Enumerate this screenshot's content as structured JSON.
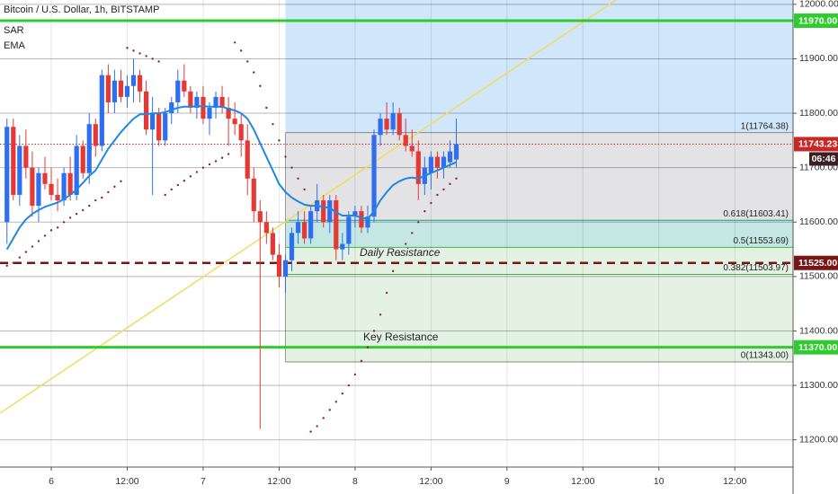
{
  "chart_data": {
    "type": "candlestick",
    "title": "Bitcoin / U.S. Dollar, 1h, BITSTAMP",
    "indicators": [
      "SAR",
      "EMA"
    ],
    "up_color": "#2e6ff2",
    "down_color": "#e53935",
    "ema_color": "#1e88e5",
    "sar_color": "#8e2430",
    "x": [
      -7,
      -6,
      -5,
      -4,
      -3,
      -2,
      -1,
      0,
      1,
      2,
      3,
      4,
      5,
      6,
      7,
      8,
      9,
      10,
      11,
      12,
      13,
      14,
      15,
      16,
      17,
      18,
      19,
      20,
      21,
      22,
      23,
      24,
      25,
      26,
      27,
      28,
      29,
      30,
      31,
      32,
      33,
      34,
      35,
      36,
      37,
      38,
      39,
      40,
      41,
      42,
      43,
      44,
      45,
      46,
      47,
      48,
      49,
      50,
      51,
      52,
      53,
      54,
      55,
      56,
      57,
      58,
      59,
      60,
      61,
      62,
      63,
      64
    ],
    "open": [
      11600,
      11775,
      11650,
      11740,
      11700,
      11630,
      11690,
      11670,
      11650,
      11640,
      11690,
      11650,
      11740,
      11690,
      11780,
      11740,
      11870,
      11820,
      11860,
      11830,
      11850,
      11870,
      11840,
      11770,
      11800,
      11750,
      11800,
      11820,
      11860,
      11840,
      11810,
      11830,
      11790,
      11810,
      11830,
      11810,
      11790,
      11780,
      11750,
      11680,
      11620,
      11600,
      11580,
      11540,
      11500,
      11530,
      11580,
      11600,
      11570,
      11620,
      11640,
      11600,
      11640,
      11550,
      11560,
      11610,
      11620,
      11590,
      11610,
      11760,
      11790,
      11770,
      11800,
      11760,
      11740,
      11730,
      11670,
      11690,
      11720,
      11700,
      11710,
      11715
    ],
    "high": [
      11790,
      11790,
      11760,
      11770,
      11730,
      11700,
      11720,
      11700,
      11680,
      11700,
      11720,
      11760,
      11750,
      11800,
      11790,
      11880,
      11890,
      11880,
      11880,
      11870,
      11900,
      11880,
      11860,
      11830,
      11810,
      11810,
      11830,
      11880,
      11890,
      11850,
      11840,
      11850,
      11820,
      11840,
      11850,
      11830,
      11820,
      11800,
      11780,
      11700,
      11640,
      11620,
      11590,
      11560,
      11540,
      11590,
      11620,
      11620,
      11630,
      11670,
      11650,
      11650,
      11650,
      11580,
      11620,
      11630,
      11630,
      11630,
      11770,
      11800,
      11820,
      11820,
      11810,
      11790,
      11770,
      11750,
      11720,
      11730,
      11730,
      11730,
      11750,
      11790
    ],
    "low": [
      11560,
      11640,
      11630,
      11680,
      11610,
      11600,
      11660,
      11640,
      11620,
      11630,
      11640,
      11640,
      11680,
      11670,
      11720,
      11730,
      11800,
      11800,
      11820,
      11810,
      11820,
      11820,
      11760,
      11650,
      11740,
      11740,
      11780,
      11800,
      11830,
      11800,
      11790,
      11780,
      11760,
      11790,
      11800,
      11740,
      11760,
      11720,
      11650,
      11600,
      11220,
      11560,
      11530,
      11480,
      11470,
      11510,
      11560,
      11560,
      11560,
      11600,
      11590,
      11580,
      11530,
      11530,
      11540,
      11590,
      11580,
      11580,
      11600,
      11740,
      11760,
      11760,
      11750,
      11730,
      11720,
      11640,
      11650,
      11660,
      11680,
      11680,
      11700,
      11700
    ],
    "close": [
      11775,
      11650,
      11740,
      11700,
      11630,
      11690,
      11670,
      11650,
      11640,
      11690,
      11650,
      11740,
      11690,
      11780,
      11740,
      11870,
      11820,
      11860,
      11830,
      11850,
      11870,
      11840,
      11770,
      11800,
      11750,
      11800,
      11820,
      11860,
      11840,
      11810,
      11830,
      11790,
      11810,
      11830,
      11810,
      11790,
      11780,
      11750,
      11680,
      11620,
      11600,
      11580,
      11540,
      11500,
      11530,
      11580,
      11600,
      11570,
      11620,
      11640,
      11600,
      11640,
      11550,
      11560,
      11610,
      11620,
      11590,
      11610,
      11760,
      11790,
      11770,
      11800,
      11760,
      11740,
      11730,
      11670,
      11700,
      11720,
      11700,
      11720,
      11730,
      11743.23
    ],
    "ema": [
      11550,
      11570,
      11590,
      11605,
      11615,
      11622,
      11628,
      11632,
      11636,
      11642,
      11650,
      11660,
      11672,
      11685,
      11695,
      11715,
      11735,
      11750,
      11765,
      11778,
      11790,
      11798,
      11798,
      11800,
      11800,
      11802,
      11806,
      11810,
      11812,
      11812,
      11813,
      11813,
      11812,
      11812,
      11812,
      11808,
      11805,
      11800,
      11790,
      11770,
      11745,
      11720,
      11695,
      11670,
      11655,
      11645,
      11638,
      11632,
      11630,
      11630,
      11628,
      11626,
      11618,
      11612,
      11612,
      11612,
      11608,
      11606,
      11620,
      11640,
      11655,
      11668,
      11675,
      11680,
      11682,
      11680,
      11685,
      11690,
      11695,
      11700,
      11705,
      11710
    ],
    "sar": [
      11520,
      11525,
      11535,
      11545,
      11555,
      11565,
      11575,
      11585,
      11590,
      11600,
      11608,
      11615,
      11622,
      11630,
      11640,
      11645,
      11655,
      11665,
      11675,
      11920,
      11915,
      11910,
      11905,
      11900,
      11895,
      11650,
      11660,
      11668,
      11676,
      11684,
      11692,
      11700,
      11706,
      11712,
      11718,
      11725,
      11930,
      11915,
      11895,
      11875,
      11850,
      11810,
      11780,
      11750,
      11720,
      11700,
      11680,
      11660,
      11215,
      11225,
      11240,
      11255,
      11270,
      11285,
      11300,
      11320,
      11345,
      11370,
      11400,
      11430,
      11470,
      11510,
      11540,
      11560,
      11580,
      11600,
      11620,
      11635,
      11650,
      11660,
      11670,
      11680
    ],
    "xlim": [
      -8.1,
      117.2
    ],
    "xticks": [
      {
        "value": 0,
        "label": "6"
      },
      {
        "value": 12,
        "label": "12:00"
      },
      {
        "value": 24,
        "label": "7"
      },
      {
        "value": 36,
        "label": "12:00"
      },
      {
        "value": 48,
        "label": "8"
      },
      {
        "value": 60,
        "label": "12:00"
      },
      {
        "value": 72,
        "label": "9"
      },
      {
        "value": 84,
        "label": "12:00"
      },
      {
        "value": 96,
        "label": "10"
      },
      {
        "value": 108,
        "label": "12:00"
      }
    ],
    "ylim": [
      11150,
      12008
    ],
    "yticks": [
      {
        "value": 11200,
        "label": "11200.00"
      },
      {
        "value": 11300,
        "label": "11300.00"
      },
      {
        "value": 11400,
        "label": "11400.00"
      },
      {
        "value": 11500,
        "label": "11500.00"
      },
      {
        "value": 11600,
        "label": "11600.00"
      },
      {
        "value": 11700,
        "label": "11700.00"
      },
      {
        "value": 11800,
        "label": "11800.00"
      },
      {
        "value": 11900,
        "label": "11900.00"
      },
      {
        "value": 12000,
        "label": "12000.00"
      }
    ],
    "grid": true,
    "levels": [
      {
        "value": 11970,
        "label": "11970.00",
        "color": "#2ecc2e",
        "style": "solid"
      },
      {
        "value": 11743.23,
        "label": "11743.23",
        "color": "#c62828",
        "style": "dotted"
      },
      {
        "value": 11525,
        "label": "11525.00",
        "color": "#7b1515",
        "style": "dashed"
      },
      {
        "value": 11370,
        "label": "11370.00",
        "color": "#2ecc2e",
        "style": "solid"
      }
    ],
    "countdown": "06:46",
    "trendline": {
      "x": [
        -8.1,
        89.2
      ],
      "y": [
        11249,
        12008
      ],
      "color": "#f0dc5a"
    },
    "fib": {
      "x_start": 37,
      "top_color": "#cfe6fb",
      "levels": [
        {
          "value": 11764.38,
          "label": "1(11764.38)",
          "color": "#888888",
          "zone": "#e3e3e6"
        },
        {
          "value": 11603.41,
          "label": "0.618(11603.41)",
          "color": "#1e9e8e",
          "zone": "#c4e7e3"
        },
        {
          "value": 11553.69,
          "label": "0.5(11553.69)",
          "color": "#4caf50",
          "zone": "#e3f2e3"
        },
        {
          "value": 11503.97,
          "label": "0.382(11503.97)",
          "color": "#4caf50",
          "zone": "#e3f2e3"
        },
        {
          "value": 11343.0,
          "label": "0(11343.00)",
          "color": "#888888"
        }
      ]
    },
    "annotations": [
      "Daily Resistance",
      "Key Resistance"
    ]
  }
}
